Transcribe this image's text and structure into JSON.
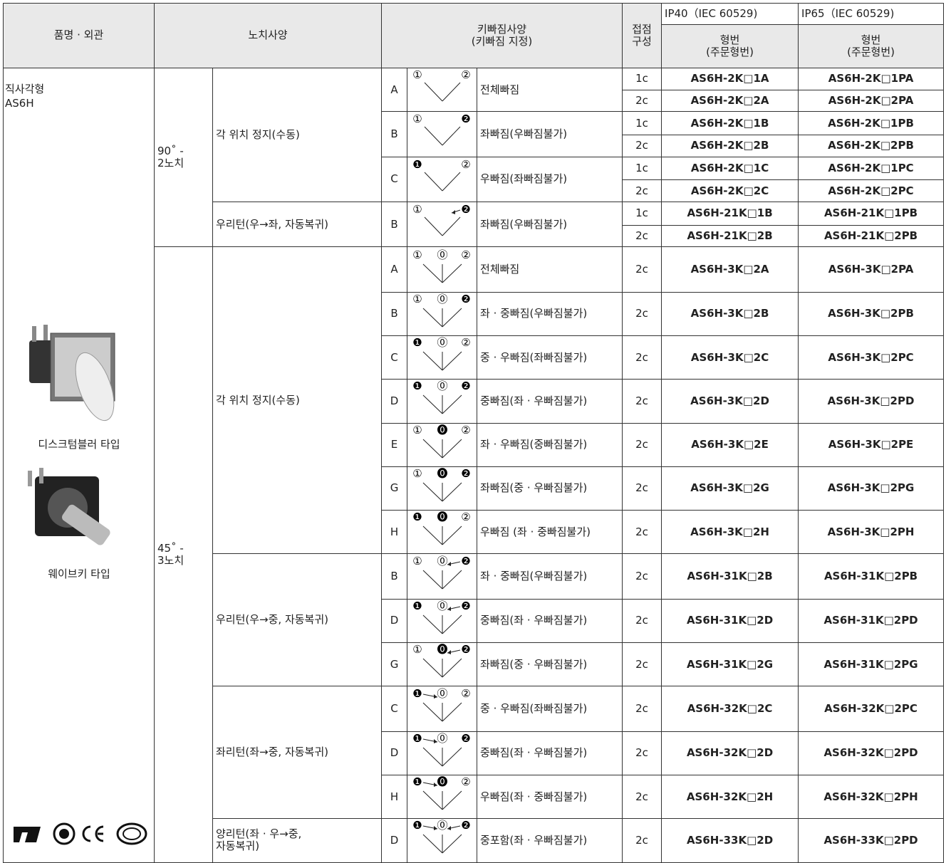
{
  "header": {
    "product": "품명 · 외관",
    "notch": "노치사양",
    "key_spec": "키빠짐사양\n(키빠짐 지정)",
    "contact": "접점\n구성",
    "ip40": {
      "label": "IP40（IEC 60529)",
      "model": "형번\n(주문형번)"
    },
    "ip65": {
      "label": "IP65（IEC 60529)",
      "model": "형번\n(주문형번)"
    }
  },
  "product": {
    "shape": "직사각형",
    "series": "AS6H",
    "types": [
      "디스크텀블러 타입",
      "웨이브키 타입"
    ]
  },
  "groups": [
    {
      "angle": "90˚ -\n2노치",
      "specs": [
        {
          "name": "각 위치 정지(수동)",
          "keys": [
            {
              "letter": "A",
              "positions": [
                "①",
                "②"
              ],
              "desc": "전체빠짐",
              "models": [
                {
                  "contact": "1c",
                  "ip40": "AS6H-2K□1A",
                  "ip65": "AS6H-2K□1PA"
                },
                {
                  "contact": "2c",
                  "ip40": "AS6H-2K□2A",
                  "ip65": "AS6H-2K□2PA"
                }
              ]
            },
            {
              "letter": "B",
              "positions": [
                "①",
                "❷"
              ],
              "desc": "좌빠짐(우빠짐불가)",
              "models": [
                {
                  "contact": "1c",
                  "ip40": "AS6H-2K□1B",
                  "ip65": "AS6H-2K□1PB"
                },
                {
                  "contact": "2c",
                  "ip40": "AS6H-2K□2B",
                  "ip65": "AS6H-2K□2PB"
                }
              ]
            },
            {
              "letter": "C",
              "positions": [
                "❶",
                "②"
              ],
              "desc": "우빠짐(좌빠짐불가)",
              "models": [
                {
                  "contact": "1c",
                  "ip40": "AS6H-2K□1C",
                  "ip65": "AS6H-2K□1PC"
                },
                {
                  "contact": "2c",
                  "ip40": "AS6H-2K□2C",
                  "ip65": "AS6H-2K□2PC"
                }
              ]
            }
          ]
        },
        {
          "name": "우리턴(우→좌, 자동복귀)",
          "keys": [
            {
              "letter": "B",
              "positions": [
                "①",
                "❷"
              ],
              "desc": "좌빠짐(우빠짐불가)",
              "models": [
                {
                  "contact": "1c",
                  "ip40": "AS6H-21K□1B",
                  "ip65": "AS6H-21K□1PB"
                },
                {
                  "contact": "2c",
                  "ip40": "AS6H-21K□2B",
                  "ip65": "AS6H-21K□2PB"
                }
              ]
            }
          ]
        }
      ]
    },
    {
      "angle": "45˚ -\n3노치",
      "specs": [
        {
          "name": "각 위치 정지(수동)",
          "keys": [
            {
              "letter": "A",
              "positions": [
                "①",
                "⓪",
                "②"
              ],
              "desc": "전체빠짐",
              "models": [
                {
                  "contact": "2c",
                  "ip40": "AS6H-3K□2A",
                  "ip65": "AS6H-3K□2PA"
                }
              ]
            },
            {
              "letter": "B",
              "positions": [
                "①",
                "⓪",
                "❷"
              ],
              "desc": "좌 · 중빠짐(우빠짐불가)",
              "models": [
                {
                  "contact": "2c",
                  "ip40": "AS6H-3K□2B",
                  "ip65": "AS6H-3K□2PB"
                }
              ]
            },
            {
              "letter": "C",
              "positions": [
                "❶",
                "⓪",
                "②"
              ],
              "desc": "중 · 우빠짐(좌빠짐불가)",
              "models": [
                {
                  "contact": "2c",
                  "ip40": "AS6H-3K□2C",
                  "ip65": "AS6H-3K□2PC"
                }
              ]
            },
            {
              "letter": "D",
              "positions": [
                "❶",
                "⓪",
                "❷"
              ],
              "desc": "중빠짐(좌 · 우빠짐불가)",
              "models": [
                {
                  "contact": "2c",
                  "ip40": "AS6H-3K□2D",
                  "ip65": "AS6H-3K□2PD"
                }
              ]
            },
            {
              "letter": "E",
              "positions": [
                "①",
                "⓿",
                "②"
              ],
              "desc": "좌 · 우빠짐(중빠짐불가)",
              "models": [
                {
                  "contact": "2c",
                  "ip40": "AS6H-3K□2E",
                  "ip65": "AS6H-3K□2PE"
                }
              ]
            },
            {
              "letter": "G",
              "positions": [
                "①",
                "⓿",
                "❷"
              ],
              "desc": "좌빠짐(중 · 우빠짐불가)",
              "models": [
                {
                  "contact": "2c",
                  "ip40": "AS6H-3K□2G",
                  "ip65": "AS6H-3K□2PG"
                }
              ]
            },
            {
              "letter": "H",
              "positions": [
                "❶",
                "⓿",
                "②"
              ],
              "desc": "우빠짐 (좌 · 중빠짐불가)",
              "models": [
                {
                  "contact": "2c",
                  "ip40": "AS6H-3K□2H",
                  "ip65": "AS6H-3K□2PH"
                }
              ]
            }
          ]
        },
        {
          "name": "우리턴(우→중, 자동복귀)",
          "keys": [
            {
              "letter": "B",
              "positions": [
                "①",
                "⓪",
                "❷"
              ],
              "desc": "좌 · 중빠짐(우빠짐불가)",
              "models": [
                {
                  "contact": "2c",
                  "ip40": "AS6H-31K□2B",
                  "ip65": "AS6H-31K□2PB"
                }
              ]
            },
            {
              "letter": "D",
              "positions": [
                "❶",
                "⓪",
                "❷"
              ],
              "desc": "중빠짐(좌 · 우빠짐불가)",
              "models": [
                {
                  "contact": "2c",
                  "ip40": "AS6H-31K□2D",
                  "ip65": "AS6H-31K□2PD"
                }
              ]
            },
            {
              "letter": "G",
              "positions": [
                "①",
                "⓿",
                "❷"
              ],
              "desc": "좌빠짐(중 · 우빠짐불가)",
              "models": [
                {
                  "contact": "2c",
                  "ip40": "AS6H-31K□2G",
                  "ip65": "AS6H-31K□2PG"
                }
              ]
            }
          ]
        },
        {
          "name": "좌리턴(좌→중, 자동복귀)",
          "keys": [
            {
              "letter": "C",
              "positions": [
                "❶",
                "⓪",
                "②"
              ],
              "desc": "중 · 우빠짐(좌빠짐불가)",
              "models": [
                {
                  "contact": "2c",
                  "ip40": "AS6H-32K□2C",
                  "ip65": "AS6H-32K□2PC"
                }
              ]
            },
            {
              "letter": "D",
              "positions": [
                "❶",
                "⓪",
                "❷"
              ],
              "desc": "중빠짐(좌 · 우빠짐불가)",
              "models": [
                {
                  "contact": "2c",
                  "ip40": "AS6H-32K□2D",
                  "ip65": "AS6H-32K□2PD"
                }
              ]
            },
            {
              "letter": "H",
              "positions": [
                "❶",
                "⓿",
                "②"
              ],
              "desc": "우빠짐(좌 · 중빠짐불가)",
              "models": [
                {
                  "contact": "2c",
                  "ip40": "AS6H-32K□2H",
                  "ip65": "AS6H-32K□2PH"
                }
              ]
            }
          ]
        },
        {
          "name": "양리턴(좌 · 우→중,\n자동복귀)",
          "keys": [
            {
              "letter": "D",
              "positions": [
                "❶",
                "⓪",
                "❷"
              ],
              "desc": "중포함(좌 · 우빠짐불가)",
              "models": [
                {
                  "contact": "2c",
                  "ip40": "AS6H-33K□2D",
                  "ip65": "AS6H-33K□2PD"
                }
              ]
            }
          ]
        }
      ]
    }
  ]
}
